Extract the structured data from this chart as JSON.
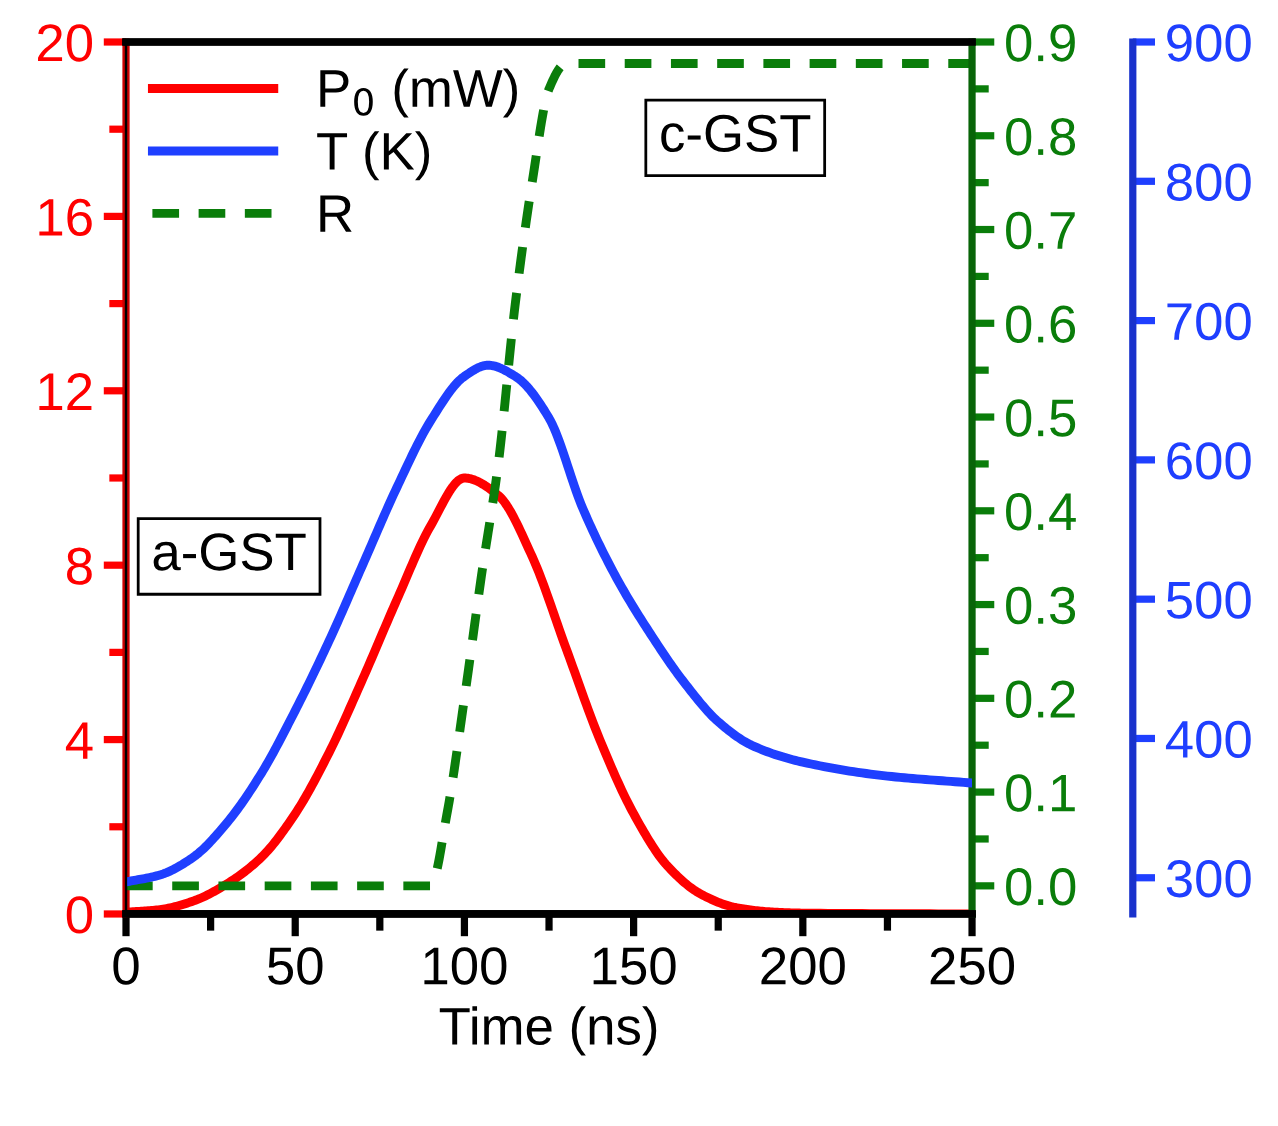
{
  "chart_data": {
    "type": "line",
    "xlabel": "Time (ns)",
    "legend": "top left",
    "line_style": "solid",
    "marker": "none",
    "xlim": [
      0,
      250
    ],
    "xticks": [
      0,
      {
        "value": 25,
        "label": null
      },
      50,
      {
        "value": 75,
        "label": null
      },
      100,
      {
        "value": 125,
        "label": null
      },
      150,
      {
        "value": 175,
        "label": null
      },
      200,
      {
        "value": 225,
        "label": null
      },
      250
    ],
    "ylim": [
      0,
      20
    ],
    "yticks": [
      0,
      {
        "value": 2,
        "label": null
      },
      4,
      {
        "value": 6,
        "label": null
      },
      8,
      {
        "value": 10,
        "label": null
      },
      12,
      {
        "value": 14,
        "label": null
      },
      16,
      {
        "value": 18,
        "label": null
      },
      20
    ],
    "y2lim": [
      -0.03,
      0.9
    ],
    "y2ticks": [
      {
        "value": 0,
        "label": "0.0"
      },
      {
        "value": 0.05,
        "label": null
      },
      0.1,
      {
        "value": 0.15,
        "label": null
      },
      0.2,
      {
        "value": 0.25,
        "label": null
      },
      0.3,
      {
        "value": 0.35,
        "label": null
      },
      0.4,
      {
        "value": 0.45,
        "label": null
      },
      0.5,
      {
        "value": 0.55,
        "label": null
      },
      0.6,
      {
        "value": 0.65,
        "label": null
      },
      0.7,
      {
        "value": 0.75,
        "label": null
      },
      0.8,
      {
        "value": 0.85,
        "label": null
      },
      0.9
    ],
    "y3lim": [
      274,
      900
    ],
    "y3ticks": [
      300,
      400,
      500,
      600,
      700,
      800,
      900
    ],
    "annotations": [
      "a-GST",
      "c-GST"
    ],
    "series": [
      {
        "name": "P$_{0}$ (mW)",
        "color": "#ff0000",
        "x": [
          0,
          10,
          20,
          30,
          40,
          50,
          60,
          70,
          80,
          90,
          100,
          110,
          120,
          130,
          140,
          150,
          160,
          170,
          180,
          190,
          200,
          250
        ],
        "values": [
          0.04,
          0.1,
          0.3,
          0.7,
          1.3,
          2.3,
          3.7,
          5.4,
          7.2,
          8.9,
          10,
          9.6,
          8.2,
          6.1,
          4.0,
          2.3,
          1.1,
          0.45,
          0.15,
          0.05,
          0.02,
          0
        ]
      },
      {
        "name": "T (K)",
        "color": "#1f3fff",
        "axis": "y3",
        "x": [
          0,
          10,
          20,
          30,
          40,
          50,
          60,
          70,
          80,
          90,
          100,
          107,
          115,
          125,
          135,
          145,
          155,
          165,
          175,
          185,
          200,
          225,
          250
        ],
        "values": [
          297,
          302,
          315,
          340,
          375,
          420,
          470,
          525,
          580,
          628,
          660,
          668,
          660,
          630,
          565,
          515,
          475,
          440,
          412,
          395,
          383,
          373,
          368
        ]
      },
      {
        "name": "R",
        "color": "#0a7d0a",
        "axis": "y2",
        "line_style": "dashed",
        "x": [
          0,
          90,
          95,
          100,
          105,
          110,
          115,
          120,
          125,
          130,
          250
        ],
        "values": [
          0,
          0,
          0.08,
          0.2,
          0.33,
          0.45,
          0.62,
          0.75,
          0.85,
          0.877,
          0.877
        ]
      }
    ]
  }
}
